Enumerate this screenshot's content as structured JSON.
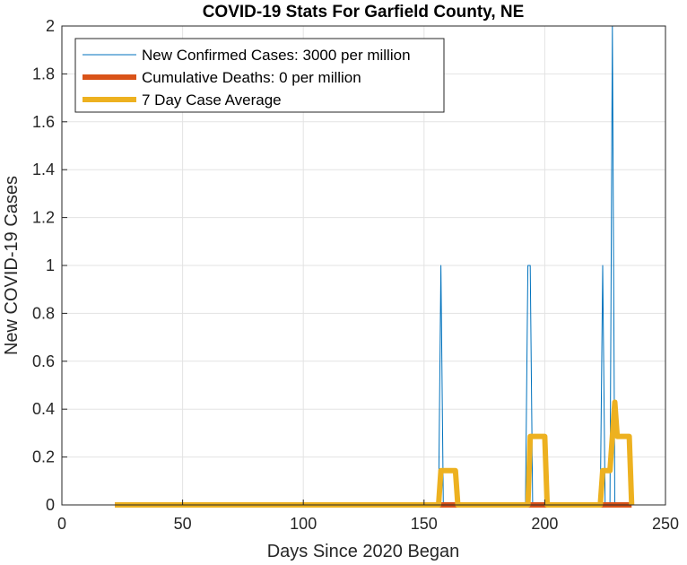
{
  "chart_data": {
    "type": "line",
    "title": "COVID-19 Stats For Garfield County, NE",
    "xlabel": "Days Since 2020 Began",
    "ylabel": "New COVID-19 Cases",
    "xlim": [
      0,
      250
    ],
    "ylim": [
      0,
      2
    ],
    "xticks": [
      "0",
      "50",
      "100",
      "150",
      "200",
      "250"
    ],
    "yticks": [
      "0",
      "0.2",
      "0.4",
      "0.6",
      "0.8",
      "1",
      "1.2",
      "1.4",
      "1.6",
      "1.8",
      "2"
    ],
    "grid": true,
    "legend_position": "top-left",
    "series": [
      {
        "name": "New Confirmed Cases: 3000 per million",
        "color": "#0072BD",
        "x": [
          22,
          156,
          157,
          158,
          192,
          193,
          194,
          195,
          223,
          224,
          225,
          227,
          228,
          229,
          230,
          236
        ],
        "y": [
          0,
          0,
          1,
          0,
          0,
          1,
          1,
          0,
          0,
          1,
          0,
          0,
          2,
          0,
          0,
          0
        ]
      },
      {
        "name": "Cumulative Deaths: 0 per million",
        "color": "#D95319",
        "x": [
          22,
          236
        ],
        "y": [
          0,
          0
        ]
      },
      {
        "name": "7 Day Case Average",
        "color": "#EDB120",
        "x": [
          22,
          156,
          157,
          163,
          164,
          193,
          194,
          200,
          201,
          223,
          224,
          227,
          228,
          229,
          230,
          235,
          236
        ],
        "y": [
          0,
          0,
          0.143,
          0.143,
          0,
          0,
          0.286,
          0.286,
          0,
          0,
          0.143,
          0.143,
          0.286,
          0.429,
          0.286,
          0.286,
          0
        ]
      }
    ]
  }
}
